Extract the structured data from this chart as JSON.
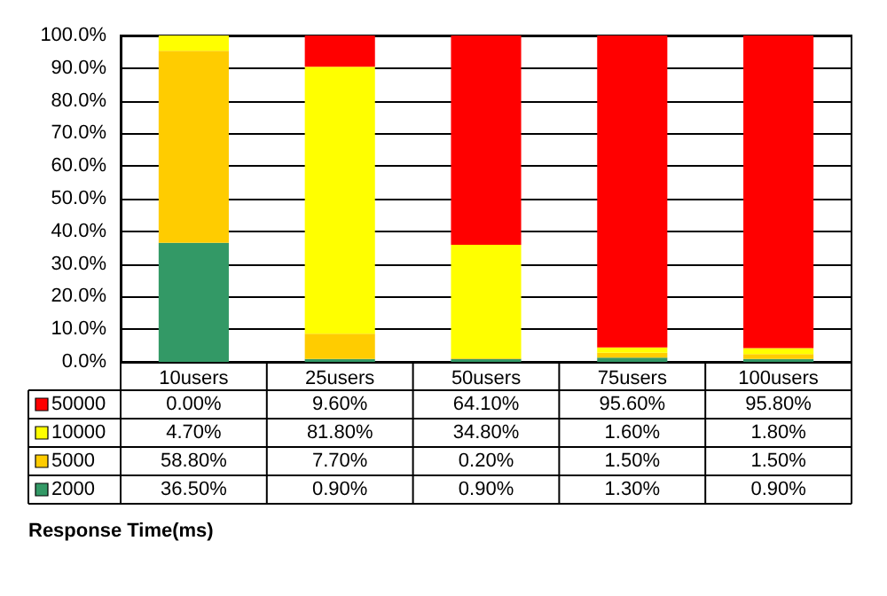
{
  "chart_data": {
    "type": "bar",
    "stacked": true,
    "annotations": [
      "Response Time(ms)"
    ],
    "categories": [
      "10users",
      "25users",
      "50users",
      "75users",
      "100users"
    ],
    "series": [
      {
        "name": "2000",
        "color": "#339966",
        "values": [
          36.5,
          0.9,
          0.9,
          1.3,
          0.9
        ],
        "value_labels": [
          "36.50%",
          "0.90%",
          "0.90%",
          "1.30%",
          "0.90%"
        ]
      },
      {
        "name": "5000",
        "color": "#ffcc00",
        "values": [
          58.8,
          7.7,
          0.2,
          1.5,
          1.5
        ],
        "value_labels": [
          "58.80%",
          "7.70%",
          "0.20%",
          "1.50%",
          "1.50%"
        ]
      },
      {
        "name": "10000",
        "color": "#ffff00",
        "values": [
          4.7,
          81.8,
          34.8,
          1.6,
          1.8
        ],
        "value_labels": [
          "4.70%",
          "81.80%",
          "34.80%",
          "1.60%",
          "1.80%"
        ]
      },
      {
        "name": "50000",
        "color": "#ff0000",
        "values": [
          0,
          9.6,
          64.1,
          95.6,
          95.8
        ],
        "value_labels": [
          "0.00%",
          "9.60%",
          "64.10%",
          "95.60%",
          "95.80%"
        ]
      }
    ],
    "ylim": [
      0,
      100
    ],
    "yticks": [
      {
        "value": 0,
        "label": "0.0%"
      },
      {
        "value": 10,
        "label": "10.0%"
      },
      {
        "value": 20,
        "label": "20.0%"
      },
      {
        "value": 30,
        "label": "30.0%"
      },
      {
        "value": 40,
        "label": "40.0%"
      },
      {
        "value": 50,
        "label": "50.0%"
      },
      {
        "value": 60,
        "label": "60.0%"
      },
      {
        "value": 70,
        "label": "70.0%"
      },
      {
        "value": 80,
        "label": "80.0%"
      },
      {
        "value": 90,
        "label": "90.0%"
      },
      {
        "value": 100,
        "label": "100.0%"
      }
    ],
    "grid": "y",
    "legend": "bottom left"
  }
}
